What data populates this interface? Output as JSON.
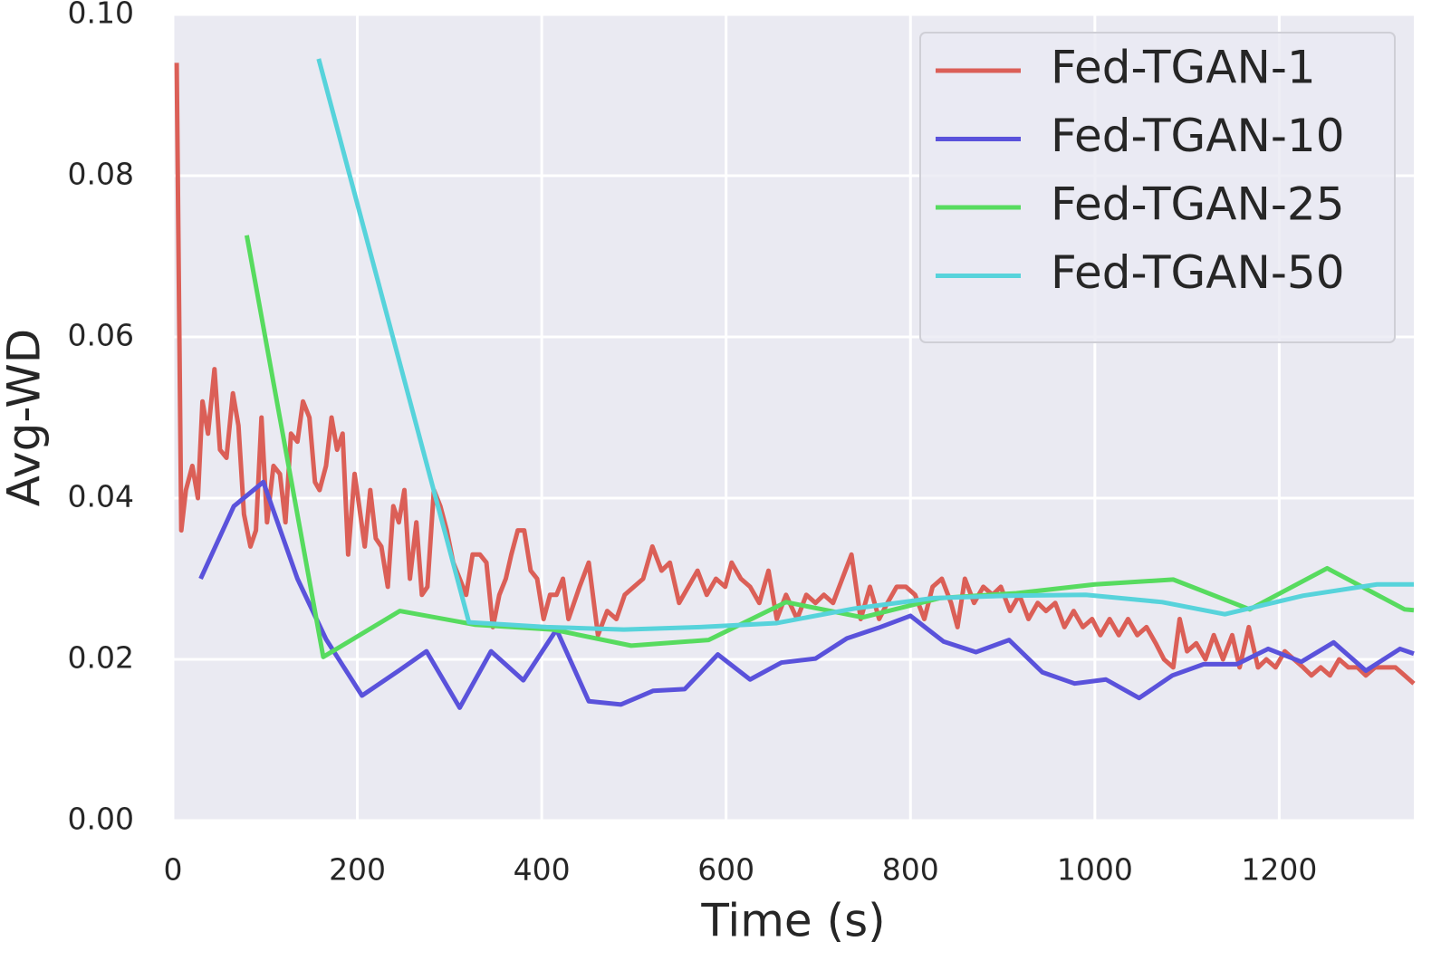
{
  "chart_data": {
    "type": "line",
    "x_label": "Time (s)",
    "y_label": "Avg-WD",
    "xlim": [
      0,
      1346
    ],
    "ylim": [
      0,
      0.1
    ],
    "xticks": [
      0,
      200,
      400,
      600,
      800,
      1000,
      1200
    ],
    "yticks": [
      {
        "value": 0,
        "label": "0.00"
      },
      0.02,
      0.04,
      0.06,
      0.08,
      {
        "value": 0.1,
        "label": "0.10"
      }
    ],
    "grid": true,
    "legend": "upper right",
    "series": [
      {
        "name": "Fed-TGAN-1",
        "color": "#db5f57",
        "x": [
          4,
          9,
          14,
          21,
          27,
          32,
          38,
          45,
          51,
          58,
          65,
          71,
          77,
          84,
          90,
          96,
          102,
          109,
          116,
          122,
          128,
          135,
          141,
          148,
          154,
          159,
          166,
          172,
          178,
          184,
          190,
          197,
          202,
          208,
          214,
          220,
          226,
          233,
          239,
          245,
          251,
          257,
          264,
          270,
          276,
          283,
          290,
          297,
          304,
          311,
          318,
          325,
          333,
          340,
          347,
          354,
          361,
          367,
          374,
          381,
          388,
          395,
          402,
          409,
          416,
          423,
          429,
          441,
          451,
          461,
          471,
          481,
          490,
          500,
          510,
          520,
          530,
          539,
          549,
          559,
          569,
          579,
          589,
          599,
          606,
          616,
          626,
          636,
          646,
          655,
          665,
          677,
          687,
          697,
          706,
          716,
          726,
          736,
          746,
          756,
          766,
          775,
          785,
          795,
          805,
          815,
          824,
          834,
          844,
          851,
          859,
          869,
          879,
          889,
          898,
          908,
          918,
          928,
          938,
          947,
          957,
          967,
          977,
          987,
          997,
          1006,
          1016,
          1026,
          1036,
          1046,
          1056,
          1066,
          1075,
          1085,
          1092,
          1100,
          1110,
          1120,
          1129,
          1139,
          1149,
          1157,
          1167,
          1177,
          1186,
          1196,
          1206,
          1216,
          1226,
          1235,
          1245,
          1255,
          1265,
          1275,
          1285,
          1294,
          1304,
          1314,
          1326,
          1336,
          1346
        ],
        "values": [
          0.094,
          0.036,
          0.041,
          0.044,
          0.04,
          0.052,
          0.048,
          0.056,
          0.046,
          0.045,
          0.053,
          0.049,
          0.038,
          0.034,
          0.036,
          0.05,
          0.037,
          0.044,
          0.043,
          0.037,
          0.048,
          0.047,
          0.052,
          0.05,
          0.042,
          0.041,
          0.044,
          0.05,
          0.046,
          0.048,
          0.033,
          0.043,
          0.039,
          0.034,
          0.041,
          0.035,
          0.034,
          0.029,
          0.039,
          0.037,
          0.041,
          0.03,
          0.037,
          0.028,
          0.029,
          0.041,
          0.039,
          0.036,
          0.032,
          0.03,
          0.028,
          0.033,
          0.033,
          0.032,
          0.024,
          0.028,
          0.03,
          0.033,
          0.036,
          0.036,
          0.031,
          0.03,
          0.025,
          0.028,
          0.028,
          0.03,
          0.025,
          0.029,
          0.032,
          0.023,
          0.026,
          0.025,
          0.028,
          0.029,
          0.03,
          0.034,
          0.031,
          0.032,
          0.027,
          0.029,
          0.031,
          0.028,
          0.03,
          0.029,
          0.032,
          0.03,
          0.029,
          0.027,
          0.031,
          0.025,
          0.028,
          0.025,
          0.028,
          0.027,
          0.028,
          0.027,
          0.03,
          0.033,
          0.025,
          0.029,
          0.025,
          0.027,
          0.029,
          0.029,
          0.028,
          0.025,
          0.029,
          0.03,
          0.027,
          0.024,
          0.03,
          0.027,
          0.029,
          0.028,
          0.029,
          0.026,
          0.028,
          0.025,
          0.027,
          0.026,
          0.027,
          0.024,
          0.026,
          0.024,
          0.025,
          0.023,
          0.025,
          0.023,
          0.025,
          0.023,
          0.024,
          0.022,
          0.02,
          0.019,
          0.025,
          0.021,
          0.022,
          0.02,
          0.023,
          0.02,
          0.023,
          0.019,
          0.024,
          0.019,
          0.02,
          0.019,
          0.021,
          0.02,
          0.019,
          0.018,
          0.019,
          0.018,
          0.02,
          0.019,
          0.019,
          0.018,
          0.019,
          0.019,
          0.019,
          0.018,
          0.017
        ]
      },
      {
        "name": "Fed-TGAN-10",
        "color": "#5a52db",
        "x": [
          30,
          66,
          98,
          135,
          166,
          205,
          245,
          275,
          311,
          345,
          380,
          416,
          451,
          486,
          521,
          555,
          591,
          626,
          660,
          697,
          731,
          765,
          800,
          836,
          871,
          907,
          943,
          978,
          1012,
          1048,
          1084,
          1118,
          1154,
          1188,
          1224,
          1259,
          1294,
          1331,
          1346
        ],
        "values": [
          0.03,
          0.039,
          0.042,
          0.03,
          0.0225,
          0.0155,
          0.0186,
          0.021,
          0.014,
          0.021,
          0.0174,
          0.0237,
          0.0148,
          0.0144,
          0.0161,
          0.0163,
          0.0206,
          0.0175,
          0.0196,
          0.0201,
          0.0226,
          0.0239,
          0.0254,
          0.0222,
          0.0209,
          0.0224,
          0.0184,
          0.017,
          0.0175,
          0.0152,
          0.018,
          0.0194,
          0.0194,
          0.0213,
          0.0197,
          0.0221,
          0.0186,
          0.0213,
          0.0207
        ]
      },
      {
        "name": "Fed-TGAN-25",
        "color": "#57db5f",
        "x": [
          80,
          163,
          246,
          328,
          412,
          497,
          581,
          665,
          748,
          832,
          915,
          1000,
          1085,
          1168,
          1252,
          1336,
          1346
        ],
        "values": [
          0.0726,
          0.0203,
          0.026,
          0.0243,
          0.0237,
          0.0217,
          0.0224,
          0.0271,
          0.0252,
          0.0276,
          0.0282,
          0.0293,
          0.0299,
          0.0262,
          0.0313,
          0.0262,
          0.0261
        ]
      },
      {
        "name": "Fed-TGAN-50",
        "color": "#57d3db",
        "x": [
          158,
          321,
          405,
          489,
          572,
          655,
          739,
          825,
          906,
          990,
          1073,
          1141,
          1226,
          1306,
          1346
        ],
        "values": [
          0.0945,
          0.0246,
          0.024,
          0.0237,
          0.024,
          0.0245,
          0.0263,
          0.0276,
          0.0279,
          0.028,
          0.0271,
          0.0256,
          0.0279,
          0.0293,
          0.0293
        ]
      }
    ]
  }
}
